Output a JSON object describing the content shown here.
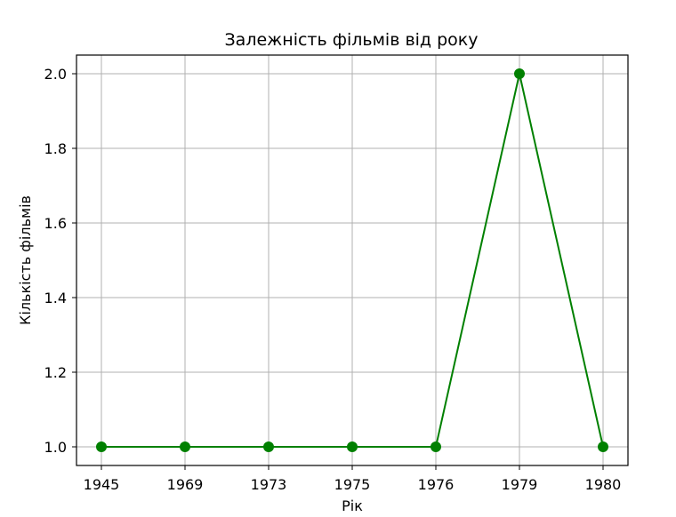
{
  "chart_data": {
    "type": "line",
    "title": "Залежність фільмів від року",
    "xlabel": "Рік",
    "ylabel": "Кількість фільмів",
    "categories": [
      "1945",
      "1969",
      "1973",
      "1975",
      "1976",
      "1979",
      "1980"
    ],
    "series": [
      {
        "values": [
          1,
          1,
          1,
          1,
          1,
          2,
          1
        ],
        "color": "#008000",
        "marker": "circle"
      }
    ],
    "ylim": [
      0.95,
      2.05
    ],
    "yticks": [
      "1.0",
      "1.2",
      "1.4",
      "1.6",
      "1.8",
      "2.0"
    ],
    "grid": true,
    "colors": {
      "grid": "#b0b0b0",
      "axes": "#000000"
    }
  }
}
